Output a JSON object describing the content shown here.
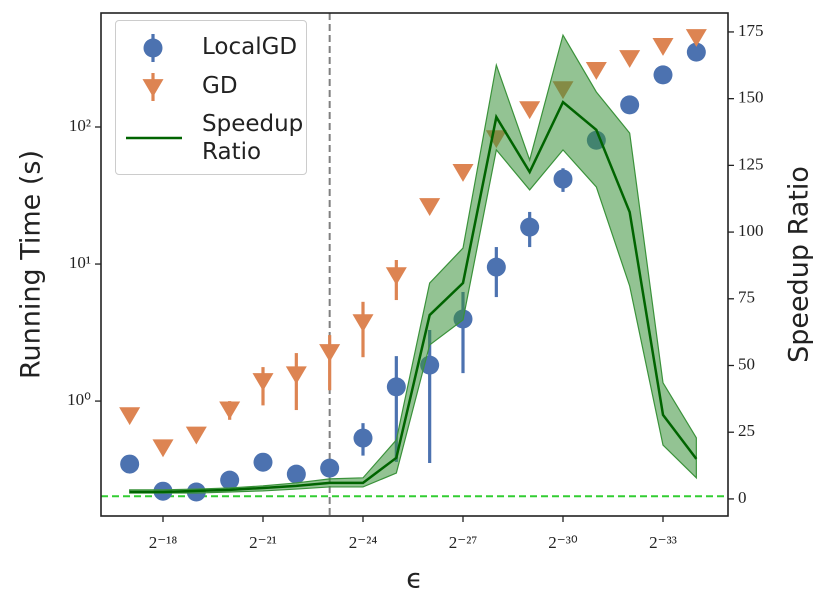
{
  "chart_data": {
    "type": "scatter",
    "xlabel": "ϵ",
    "ylabel": "Running Time (s)",
    "y2label": "Speedup Ratio",
    "x": [
      -17,
      -18,
      -19,
      -20,
      -21,
      -22,
      -23,
      -24,
      -25,
      -26,
      -27,
      -28,
      -29,
      -30,
      -31,
      -32,
      -33,
      -34
    ],
    "xlim": [
      -16.14,
      -34.95
    ],
    "xticks": [
      {
        "value": -18,
        "label": "2⁻¹⁸"
      },
      {
        "value": -21,
        "label": "2⁻²¹"
      },
      {
        "value": -24,
        "label": "2⁻²⁴"
      },
      {
        "value": -27,
        "label": "2⁻²⁷"
      },
      {
        "value": -30,
        "label": "2⁻³⁰"
      },
      {
        "value": -33,
        "label": "2⁻³³"
      }
    ],
    "ylim": [
      0.145,
      679
    ],
    "yscale": "log",
    "yticks": [
      {
        "value": 1,
        "label": "10⁰"
      },
      {
        "value": 10,
        "label": "10¹"
      },
      {
        "value": 100,
        "label": "10²"
      }
    ],
    "y2lim": [
      -6.4,
      182.1
    ],
    "y2ticks": [
      0,
      25,
      50,
      75,
      100,
      125,
      150,
      175
    ],
    "vline": {
      "x": -23,
      "color": "#808080"
    },
    "hline": {
      "y2": 1,
      "color": "#32cd32"
    },
    "legend": "upper left",
    "series": [
      {
        "name": "LocalGD",
        "kind": "circle",
        "color": "#4c72b0",
        "values": [
          0.347,
          0.22,
          0.217,
          0.265,
          0.358,
          0.293,
          0.324,
          0.537,
          1.27,
          1.83,
          3.97,
          9.5,
          18.6,
          41.7,
          80,
          145,
          240,
          352
        ],
        "lower": [
          null,
          null,
          null,
          null,
          null,
          null,
          null,
          0.4,
          0.36,
          0.353,
          1.6,
          5.74,
          13.3,
          33.6,
          null,
          null,
          null,
          null
        ],
        "upper": [
          null,
          null,
          null,
          null,
          null,
          null,
          null,
          0.69,
          2.13,
          3.3,
          6.25,
          13.3,
          24,
          50,
          null,
          null,
          null,
          null
        ]
      },
      {
        "name": "GD",
        "kind": "triangle",
        "color": "#dd8452",
        "values": [
          0.79,
          0.46,
          0.57,
          0.87,
          1.4,
          1.57,
          2.28,
          3.77,
          8.3,
          26.5,
          47,
          83,
          135,
          189,
          261,
          319,
          391,
          454
        ],
        "lower": [
          null,
          null,
          null,
          0.73,
          0.93,
          0.86,
          1.2,
          2.09,
          5.46,
          null,
          null,
          null,
          null,
          null,
          null,
          null,
          null,
          null
        ],
        "upper": [
          null,
          null,
          null,
          1.0,
          1.77,
          2.24,
          3.03,
          5.3,
          10.7,
          null,
          null,
          null,
          null,
          null,
          null,
          null,
          null,
          null
        ]
      },
      {
        "name": "Speedup Ratio",
        "kind": "line",
        "axis": "y2",
        "color": "#006400",
        "band_color": "#3a923a",
        "values": [
          2.6,
          2.6,
          3.0,
          3.4,
          4.1,
          4.9,
          6.0,
          6.0,
          15.4,
          68.9,
          80.9,
          143.1,
          122.5,
          148.7,
          138.3,
          107.5,
          31.5,
          15.0
        ],
        "lower": [
          2.2,
          2.2,
          2.2,
          2.6,
          3.0,
          3.7,
          4.5,
          4.5,
          9.7,
          57.7,
          67.1,
          130.8,
          115.8,
          130.8,
          116.9,
          79.8,
          20.2,
          7.9
        ],
        "upper": [
          3.4,
          3.4,
          3.7,
          4.1,
          4.9,
          6.0,
          7.5,
          7.9,
          22.1,
          80.9,
          94,
          162.6,
          127,
          173.8,
          152.5,
          137.1,
          43.5,
          22.9
        ]
      }
    ]
  }
}
